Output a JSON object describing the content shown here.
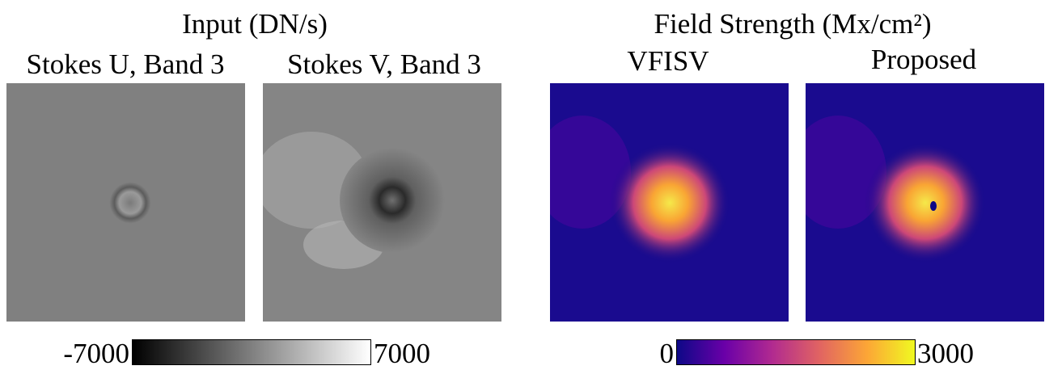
{
  "left_group": {
    "title": "Input (DN/s)",
    "panels": [
      "Stokes U, Band 3",
      "Stokes V, Band 3"
    ],
    "colorbar": {
      "min_label": "-7000",
      "max_label": "7000"
    }
  },
  "right_group": {
    "title": "Field Strength (Mx/cm²)",
    "panels": [
      "VFISV",
      "Proposed"
    ],
    "colorbar": {
      "min_label": "0",
      "max_label": "3000"
    }
  }
}
